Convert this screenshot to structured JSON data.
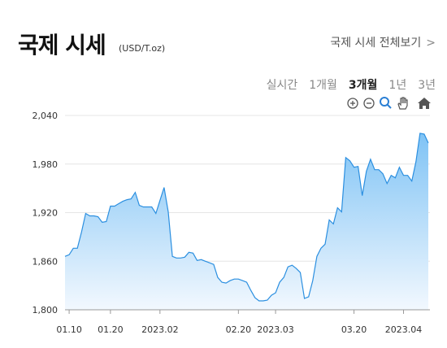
{
  "chart_data": {
    "type": "area",
    "title": "국제 시세",
    "subtitle": "(USD/T.oz)",
    "link": "국제 시세 전체보기",
    "tabs": [
      "실시간",
      "1개월",
      "3개월",
      "1년",
      "3년"
    ],
    "categories": [
      null,
      "01.10",
      null,
      null,
      null,
      null,
      null,
      null,
      null,
      null,
      null,
      "01.20",
      null,
      null,
      null,
      null,
      null,
      null,
      null,
      null,
      null,
      null,
      null,
      "2023.02",
      null,
      null,
      null,
      null,
      null,
      null,
      null,
      null,
      null,
      null,
      null,
      null,
      null,
      null,
      null,
      null,
      null,
      null,
      "02.20",
      null,
      null,
      null,
      null,
      null,
      null,
      null,
      null,
      "2023.03",
      null,
      null,
      null,
      null,
      null,
      null,
      null,
      null,
      null,
      null,
      null,
      null,
      null,
      null,
      null,
      null,
      null,
      null,
      "03.20",
      null,
      null,
      null,
      null,
      null,
      null,
      null,
      null,
      null,
      null,
      null,
      "2023.04",
      null,
      null,
      null,
      null,
      null,
      null
    ],
    "values": [
      1866,
      1868,
      1876,
      1876,
      1896,
      1919,
      1916,
      1916,
      1915,
      1908,
      1909,
      1928,
      1928,
      1931,
      1934,
      1936,
      1937,
      1945,
      1929,
      1927,
      1927,
      1927,
      1919,
      1935,
      1951,
      1921,
      1866,
      1864,
      1864,
      1865,
      1871,
      1870,
      1861,
      1862,
      1860,
      1858,
      1856,
      1840,
      1834,
      1833,
      1836,
      1838,
      1838,
      1836,
      1834,
      1824,
      1815,
      1811,
      1811,
      1812,
      1818,
      1821,
      1834,
      1840,
      1853,
      1855,
      1851,
      1846,
      1814,
      1816,
      1836,
      1866,
      1876,
      1881,
      1911,
      1906,
      1926,
      1921,
      1988,
      1984,
      1976,
      1977,
      1941,
      1971,
      1986,
      1973,
      1973,
      1968,
      1956,
      1966,
      1963,
      1976,
      1966,
      1966,
      1959,
      1983,
      2018,
      2017,
      2006
    ],
    "color": "#2b8fe0",
    "ylim": [
      1800,
      2040
    ],
    "yticks": [
      {
        "value": 1800,
        "label": "1,800"
      },
      {
        "value": 1860,
        "label": "1,860"
      },
      {
        "value": 1920,
        "label": "1,920"
      },
      {
        "value": 1980,
        "label": "1,980"
      },
      {
        "value": 2040,
        "label": "2,040"
      }
    ],
    "grid": true
  }
}
